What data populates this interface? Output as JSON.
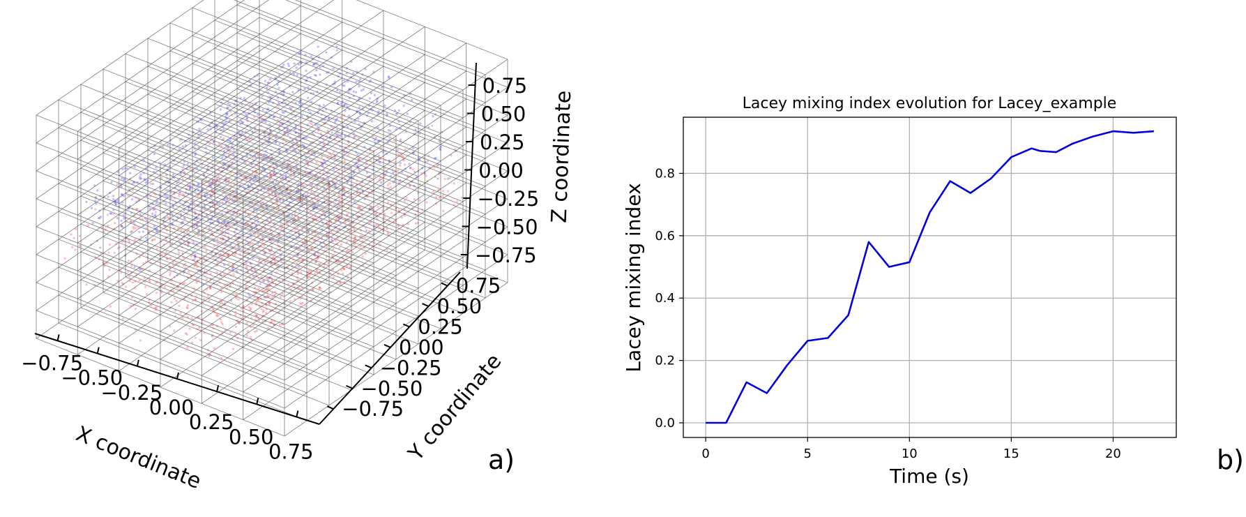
{
  "chart_data": [
    {
      "type": "scatter",
      "projection": "3d",
      "xlabel": "X coordinate",
      "ylabel": "Y coordinate",
      "zlabel": "Z coordinate",
      "x_ticks": [
        "−0.75",
        "−0.50",
        "−0.25",
        "0.00",
        "0.25",
        "0.50",
        "0.75"
      ],
      "y_ticks": [
        "−0.75",
        "−0.50",
        "−0.25",
        "0.00",
        "0.25",
        "0.50",
        "0.75"
      ],
      "z_ticks": [
        "0.75",
        "0.50",
        "0.25",
        "0.00",
        "−0.25",
        "−0.50",
        "−0.75"
      ],
      "xlim": [
        -0.9,
        0.9
      ],
      "ylim": [
        -0.9,
        0.9
      ],
      "zlim": [
        -0.9,
        0.9
      ],
      "grid": true,
      "series": [
        {
          "color": "#ff2020",
          "marker": "dot"
        },
        {
          "color": "#2020ff",
          "marker": "dot"
        }
      ],
      "panel_label": "a)"
    },
    {
      "type": "line",
      "title": "Lacey mixing index evolution for Lacey_example",
      "xlabel": "Time (s)",
      "ylabel": "Lacey mixing index",
      "x_ticks": [
        "0",
        "5",
        "10",
        "15",
        "20"
      ],
      "y_ticks": [
        "0.0",
        "0.2",
        "0.4",
        "0.6",
        "0.8"
      ],
      "xlim": [
        -1.1,
        23.1
      ],
      "ylim": [
        -0.047,
        0.98
      ],
      "grid": true,
      "series": [
        {
          "color": "#0000dd",
          "x": [
            0,
            1,
            2,
            3,
            4,
            5,
            6,
            7,
            8,
            9,
            10,
            11,
            12,
            13,
            14,
            15,
            16,
            16.4,
            17.2,
            18,
            19,
            20,
            21,
            22
          ],
          "y": [
            0.0,
            0.0,
            0.13,
            0.095,
            0.185,
            0.263,
            0.272,
            0.345,
            0.58,
            0.5,
            0.515,
            0.675,
            0.775,
            0.737,
            0.783,
            0.852,
            0.88,
            0.872,
            0.868,
            0.895,
            0.918,
            0.935,
            0.93,
            0.935
          ]
        }
      ],
      "panel_label": "b)"
    }
  ]
}
